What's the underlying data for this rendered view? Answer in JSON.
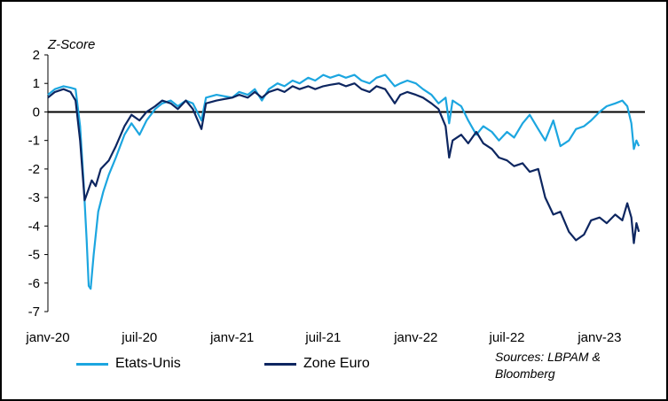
{
  "chart_data": {
    "type": "line",
    "title": "",
    "ylabel": "Z-Score",
    "xlabel": "",
    "ylim": [
      -7,
      2
    ],
    "yticks": [
      "2",
      "1",
      "0",
      "-1",
      "-2",
      "-3",
      "-4",
      "-5",
      "-6",
      "-7"
    ],
    "xlim": [
      "2020-01-01",
      "2023-04-01"
    ],
    "xticks": [
      {
        "date": "2020-01-01",
        "label": "janv-20"
      },
      {
        "date": "2020-07-01",
        "label": "juil-20"
      },
      {
        "date": "2021-01-01",
        "label": "janv-21"
      },
      {
        "date": "2021-07-01",
        "label": "juil-21"
      },
      {
        "date": "2022-01-01",
        "label": "janv-22"
      },
      {
        "date": "2022-07-01",
        "label": "juil-22"
      },
      {
        "date": "2023-01-01",
        "label": "janv-23"
      }
    ],
    "grid": false,
    "legend_placement": "bottom",
    "series": [
      {
        "name": "Etats-Unis",
        "color": "#1ca6e0",
        "points": [
          [
            "2020-01-01",
            0.6
          ],
          [
            "2020-01-15",
            0.8
          ],
          [
            "2020-02-01",
            0.9
          ],
          [
            "2020-02-15",
            0.85
          ],
          [
            "2020-02-25",
            0.8
          ],
          [
            "2020-03-05",
            -0.5
          ],
          [
            "2020-03-12",
            -2.5
          ],
          [
            "2020-03-18",
            -4.5
          ],
          [
            "2020-03-22",
            -6.1
          ],
          [
            "2020-03-26",
            -6.2
          ],
          [
            "2020-04-01",
            -5.0
          ],
          [
            "2020-04-10",
            -3.5
          ],
          [
            "2020-04-20",
            -2.8
          ],
          [
            "2020-05-01",
            -2.2
          ],
          [
            "2020-05-15",
            -1.6
          ],
          [
            "2020-06-01",
            -0.8
          ],
          [
            "2020-06-15",
            -0.4
          ],
          [
            "2020-07-01",
            -0.8
          ],
          [
            "2020-07-15",
            -0.3
          ],
          [
            "2020-08-01",
            0.1
          ],
          [
            "2020-08-15",
            0.3
          ],
          [
            "2020-09-01",
            0.4
          ],
          [
            "2020-09-15",
            0.2
          ],
          [
            "2020-10-01",
            0.4
          ],
          [
            "2020-10-15",
            0.3
          ],
          [
            "2020-11-01",
            -0.3
          ],
          [
            "2020-11-10",
            0.5
          ],
          [
            "2020-12-01",
            0.6
          ],
          [
            "2021-01-01",
            0.5
          ],
          [
            "2021-01-15",
            0.7
          ],
          [
            "2021-02-01",
            0.6
          ],
          [
            "2021-02-15",
            0.8
          ],
          [
            "2021-03-01",
            0.4
          ],
          [
            "2021-03-15",
            0.8
          ],
          [
            "2021-04-01",
            1.0
          ],
          [
            "2021-04-15",
            0.9
          ],
          [
            "2021-05-01",
            1.1
          ],
          [
            "2021-05-15",
            1.0
          ],
          [
            "2021-06-01",
            1.2
          ],
          [
            "2021-06-15",
            1.1
          ],
          [
            "2021-07-01",
            1.3
          ],
          [
            "2021-07-15",
            1.2
          ],
          [
            "2021-08-01",
            1.3
          ],
          [
            "2021-08-15",
            1.2
          ],
          [
            "2021-09-01",
            1.3
          ],
          [
            "2021-09-15",
            1.1
          ],
          [
            "2021-10-01",
            1.0
          ],
          [
            "2021-10-15",
            1.2
          ],
          [
            "2021-11-01",
            1.3
          ],
          [
            "2021-11-20",
            0.9
          ],
          [
            "2021-12-01",
            1.0
          ],
          [
            "2021-12-15",
            1.1
          ],
          [
            "2022-01-01",
            1.0
          ],
          [
            "2022-01-15",
            0.8
          ],
          [
            "2022-02-01",
            0.6
          ],
          [
            "2022-02-15",
            0.3
          ],
          [
            "2022-03-01",
            0.5
          ],
          [
            "2022-03-08",
            -0.4
          ],
          [
            "2022-03-15",
            0.4
          ],
          [
            "2022-04-01",
            0.2
          ],
          [
            "2022-04-15",
            -0.3
          ],
          [
            "2022-05-01",
            -0.8
          ],
          [
            "2022-05-15",
            -0.5
          ],
          [
            "2022-06-01",
            -0.7
          ],
          [
            "2022-06-15",
            -1.0
          ],
          [
            "2022-07-01",
            -0.7
          ],
          [
            "2022-07-15",
            -0.9
          ],
          [
            "2022-08-01",
            -0.4
          ],
          [
            "2022-08-15",
            -0.1
          ],
          [
            "2022-09-01",
            -0.6
          ],
          [
            "2022-09-15",
            -1.0
          ],
          [
            "2022-10-01",
            -0.3
          ],
          [
            "2022-10-15",
            -1.2
          ],
          [
            "2022-11-01",
            -1.0
          ],
          [
            "2022-11-15",
            -0.6
          ],
          [
            "2022-12-01",
            -0.5
          ],
          [
            "2022-12-15",
            -0.3
          ],
          [
            "2023-01-01",
            0.0
          ],
          [
            "2023-01-15",
            0.2
          ],
          [
            "2023-02-01",
            0.3
          ],
          [
            "2023-02-15",
            0.4
          ],
          [
            "2023-02-25",
            0.2
          ],
          [
            "2023-03-05",
            -0.4
          ],
          [
            "2023-03-10",
            -1.3
          ],
          [
            "2023-03-15",
            -1.0
          ],
          [
            "2023-03-20",
            -1.2
          ]
        ]
      },
      {
        "name": "Zone Euro",
        "color": "#0d2660",
        "points": [
          [
            "2020-01-01",
            0.5
          ],
          [
            "2020-01-15",
            0.7
          ],
          [
            "2020-02-01",
            0.8
          ],
          [
            "2020-02-15",
            0.7
          ],
          [
            "2020-02-25",
            0.4
          ],
          [
            "2020-03-05",
            -1.0
          ],
          [
            "2020-03-10",
            -2.2
          ],
          [
            "2020-03-14",
            -3.1
          ],
          [
            "2020-03-20",
            -2.8
          ],
          [
            "2020-03-28",
            -2.4
          ],
          [
            "2020-04-05",
            -2.6
          ],
          [
            "2020-04-15",
            -2.0
          ],
          [
            "2020-05-01",
            -1.7
          ],
          [
            "2020-05-15",
            -1.2
          ],
          [
            "2020-06-01",
            -0.5
          ],
          [
            "2020-06-15",
            -0.1
          ],
          [
            "2020-07-01",
            -0.3
          ],
          [
            "2020-07-15",
            0.0
          ],
          [
            "2020-08-01",
            0.2
          ],
          [
            "2020-08-15",
            0.4
          ],
          [
            "2020-09-01",
            0.3
          ],
          [
            "2020-09-15",
            0.1
          ],
          [
            "2020-10-01",
            0.4
          ],
          [
            "2020-10-15",
            0.1
          ],
          [
            "2020-11-01",
            -0.6
          ],
          [
            "2020-11-10",
            0.3
          ],
          [
            "2020-12-01",
            0.4
          ],
          [
            "2021-01-01",
            0.5
          ],
          [
            "2021-01-15",
            0.6
          ],
          [
            "2021-02-01",
            0.5
          ],
          [
            "2021-02-15",
            0.7
          ],
          [
            "2021-03-01",
            0.5
          ],
          [
            "2021-03-15",
            0.7
          ],
          [
            "2021-04-01",
            0.8
          ],
          [
            "2021-04-15",
            0.7
          ],
          [
            "2021-05-01",
            0.9
          ],
          [
            "2021-05-15",
            0.8
          ],
          [
            "2021-06-01",
            0.9
          ],
          [
            "2021-06-15",
            0.8
          ],
          [
            "2021-07-01",
            0.9
          ],
          [
            "2021-07-15",
            0.95
          ],
          [
            "2021-08-01",
            1.0
          ],
          [
            "2021-08-15",
            0.9
          ],
          [
            "2021-09-01",
            1.0
          ],
          [
            "2021-09-15",
            0.8
          ],
          [
            "2021-10-01",
            0.7
          ],
          [
            "2021-10-15",
            0.9
          ],
          [
            "2021-11-01",
            0.8
          ],
          [
            "2021-11-20",
            0.3
          ],
          [
            "2021-12-01",
            0.6
          ],
          [
            "2021-12-15",
            0.7
          ],
          [
            "2022-01-01",
            0.6
          ],
          [
            "2022-01-15",
            0.5
          ],
          [
            "2022-02-01",
            0.3
          ],
          [
            "2022-02-15",
            0.1
          ],
          [
            "2022-03-01",
            -0.5
          ],
          [
            "2022-03-08",
            -1.6
          ],
          [
            "2022-03-15",
            -1.0
          ],
          [
            "2022-04-01",
            -0.8
          ],
          [
            "2022-04-15",
            -1.1
          ],
          [
            "2022-05-01",
            -0.7
          ],
          [
            "2022-05-15",
            -1.1
          ],
          [
            "2022-06-01",
            -1.3
          ],
          [
            "2022-06-15",
            -1.6
          ],
          [
            "2022-07-01",
            -1.7
          ],
          [
            "2022-07-15",
            -1.9
          ],
          [
            "2022-08-01",
            -1.8
          ],
          [
            "2022-08-15",
            -2.1
          ],
          [
            "2022-09-01",
            -2.0
          ],
          [
            "2022-09-15",
            -3.0
          ],
          [
            "2022-10-01",
            -3.6
          ],
          [
            "2022-10-15",
            -3.5
          ],
          [
            "2022-11-01",
            -4.2
          ],
          [
            "2022-11-15",
            -4.5
          ],
          [
            "2022-12-01",
            -4.3
          ],
          [
            "2022-12-15",
            -3.8
          ],
          [
            "2023-01-01",
            -3.7
          ],
          [
            "2023-01-15",
            -3.9
          ],
          [
            "2023-02-01",
            -3.6
          ],
          [
            "2023-02-15",
            -3.8
          ],
          [
            "2023-02-25",
            -3.2
          ],
          [
            "2023-03-05",
            -3.7
          ],
          [
            "2023-03-10",
            -4.6
          ],
          [
            "2023-03-15",
            -3.9
          ],
          [
            "2023-03-20",
            -4.2
          ]
        ]
      }
    ]
  },
  "source_note": "Sources: LBPAM & Bloomberg"
}
